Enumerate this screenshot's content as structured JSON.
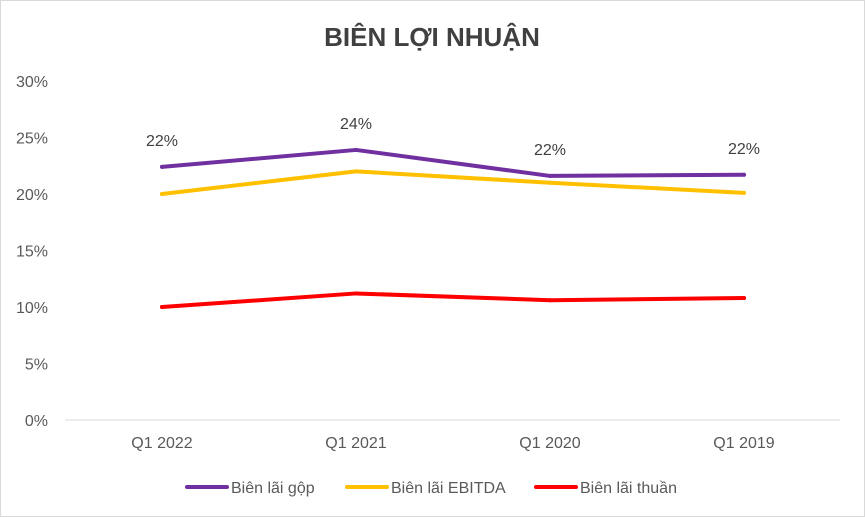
{
  "chart_data": {
    "type": "line",
    "title": "BIÊN LỢI NHUẬN",
    "categories": [
      "Q1 2022",
      "Q1 2021",
      "Q1 2020",
      "Q1 2019"
    ],
    "ylim": [
      0,
      30
    ],
    "yticks": [
      0,
      5,
      10,
      15,
      20,
      25,
      30
    ],
    "ytick_labels": [
      "0%",
      "5%",
      "10%",
      "15%",
      "20%",
      "25%",
      "30%"
    ],
    "xlabel": "",
    "ylabel": "",
    "grid": false,
    "legend_position": "bottom",
    "series": [
      {
        "name": "Biên lãi gộp",
        "color": "#7030a0",
        "values": [
          22.4,
          23.9,
          21.6,
          21.7
        ],
        "data_labels": [
          "22%",
          "24%",
          "22%",
          "22%"
        ]
      },
      {
        "name": "Biên lãi EBITDA",
        "color": "#ffc000",
        "values": [
          20.0,
          22.0,
          21.0,
          20.1
        ]
      },
      {
        "name": "Biên lãi thuần",
        "color": "#ff0000",
        "values": [
          10.0,
          11.2,
          10.6,
          10.8
        ]
      }
    ]
  }
}
